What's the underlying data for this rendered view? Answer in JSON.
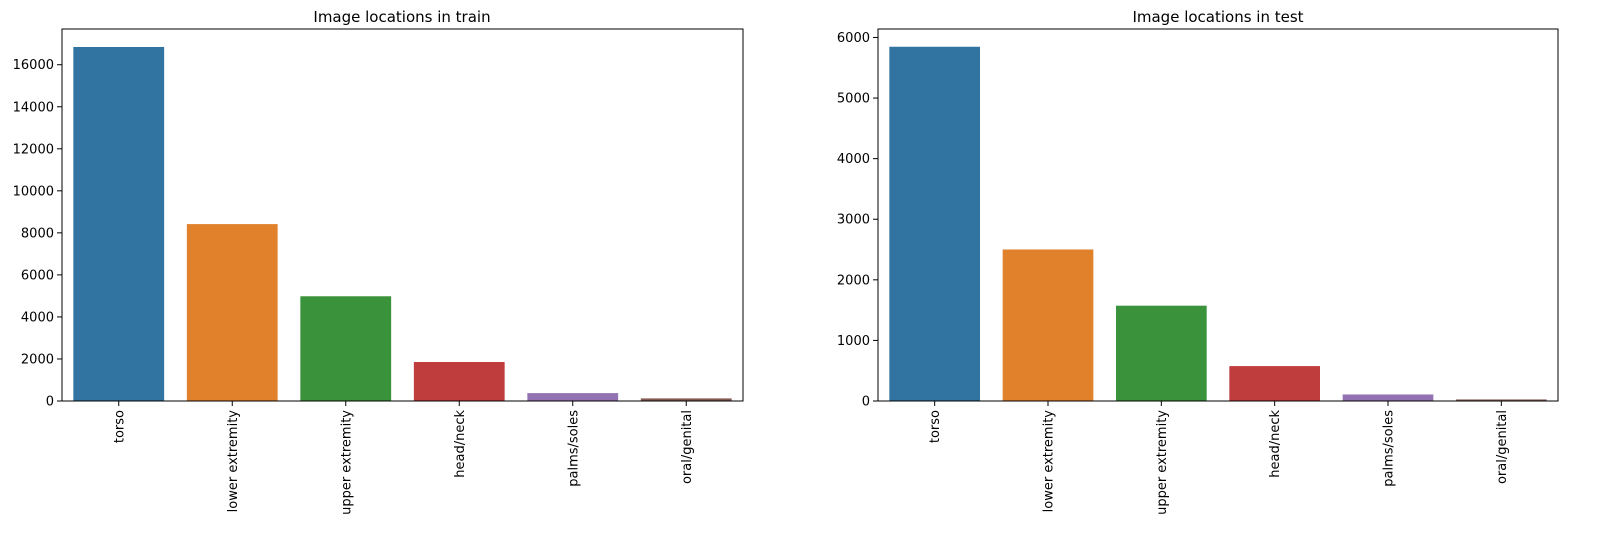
{
  "chart_data": [
    {
      "type": "bar",
      "title": "Image locations in train",
      "xlabel": "",
      "ylabel": "",
      "categories": [
        "torso",
        "lower extremity",
        "upper extremity",
        "head/neck",
        "palms/soles",
        "oral/genital"
      ],
      "values": [
        16845,
        8417,
        4983,
        1855,
        375,
        124
      ],
      "colors": [
        "#3274a1",
        "#e1812c",
        "#3a923a",
        "#c03d3e",
        "#9372b2",
        "#845b53"
      ],
      "ylim": [
        0,
        17700
      ],
      "yticks": [
        0,
        2000,
        4000,
        6000,
        8000,
        10000,
        12000,
        14000,
        16000
      ],
      "grid": false,
      "legend": false
    },
    {
      "type": "bar",
      "title": "Image locations in test",
      "xlabel": "",
      "ylabel": "",
      "categories": [
        "torso",
        "lower extremity",
        "upper extremity",
        "head/neck",
        "palms/soles",
        "oral/genital"
      ],
      "values": [
        5847,
        2501,
        1573,
        576,
        108,
        26
      ],
      "colors": [
        "#3274a1",
        "#e1812c",
        "#3a923a",
        "#c03d3e",
        "#9372b2",
        "#845b53"
      ],
      "ylim": [
        0,
        6140
      ],
      "yticks": [
        0,
        1000,
        2000,
        3000,
        4000,
        5000,
        6000
      ],
      "grid": false,
      "legend": false
    }
  ]
}
